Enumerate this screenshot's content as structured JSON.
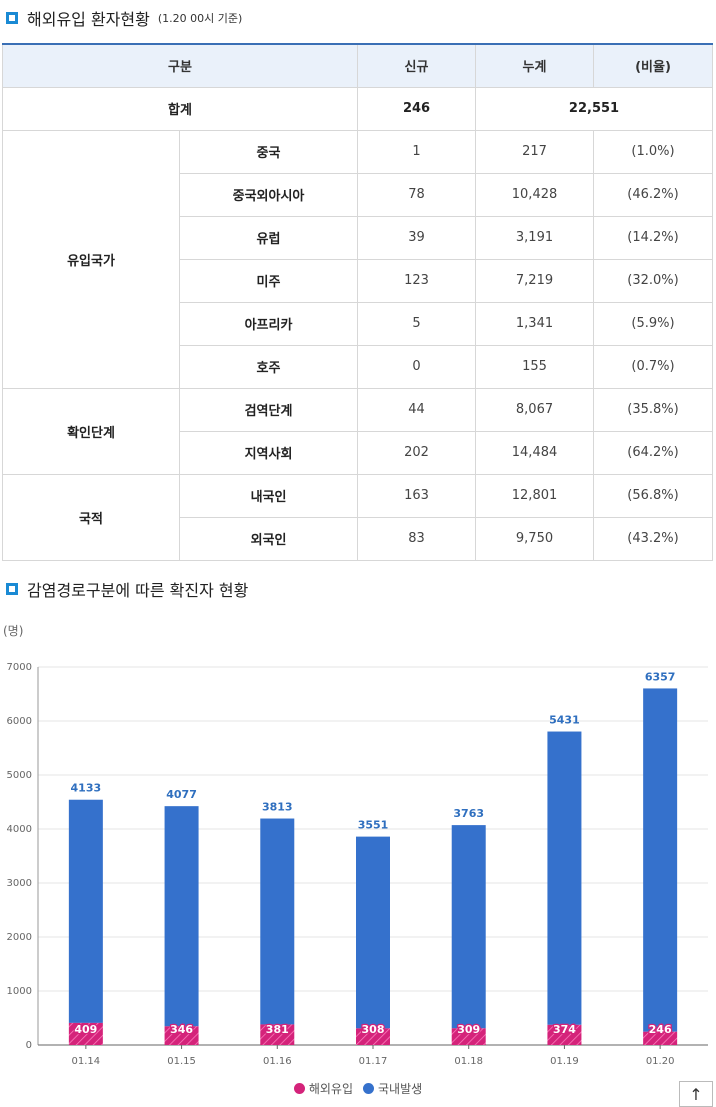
{
  "section1": {
    "title": "해외유입 환자현황",
    "subtitle": "(1.20 00시 기준)"
  },
  "table": {
    "headers": [
      "구분",
      "신규",
      "누계",
      "(비율)"
    ],
    "total": {
      "label": "합계",
      "new": "246",
      "cumulative": "22,551"
    },
    "groups": [
      {
        "label": "유입국가",
        "rows": [
          {
            "name": "중국",
            "new": "1",
            "cumulative": "217",
            "ratio": "(1.0%)"
          },
          {
            "name": "중국외아시아",
            "new": "78",
            "cumulative": "10,428",
            "ratio": "(46.2%)"
          },
          {
            "name": "유럽",
            "new": "39",
            "cumulative": "3,191",
            "ratio": "(14.2%)"
          },
          {
            "name": "미주",
            "new": "123",
            "cumulative": "7,219",
            "ratio": "(32.0%)"
          },
          {
            "name": "아프리카",
            "new": "5",
            "cumulative": "1,341",
            "ratio": "(5.9%)"
          },
          {
            "name": "호주",
            "new": "0",
            "cumulative": "155",
            "ratio": "(0.7%)"
          }
        ]
      },
      {
        "label": "확인단계",
        "rows": [
          {
            "name": "검역단계",
            "new": "44",
            "cumulative": "8,067",
            "ratio": "(35.8%)"
          },
          {
            "name": "지역사회",
            "new": "202",
            "cumulative": "14,484",
            "ratio": "(64.2%)"
          }
        ]
      },
      {
        "label": "국적",
        "rows": [
          {
            "name": "내국인",
            "new": "163",
            "cumulative": "12,801",
            "ratio": "(56.8%)"
          },
          {
            "name": "외국인",
            "new": "83",
            "cumulative": "9,750",
            "ratio": "(43.2%)"
          }
        ]
      }
    ]
  },
  "section2": {
    "title": "감염경로구분에 따른 확진자 현황"
  },
  "chart_data": {
    "type": "bar",
    "stacked": true,
    "unit_label": "(명)",
    "categories": [
      "01.14",
      "01.15",
      "01.16",
      "01.17",
      "01.18",
      "01.19",
      "01.20"
    ],
    "ylim": [
      0,
      7000
    ],
    "yticks": [
      0,
      1000,
      2000,
      3000,
      4000,
      5000,
      6000,
      7000
    ],
    "series": [
      {
        "name": "해외유입",
        "color": "#d4237a",
        "values": [
          409,
          346,
          381,
          308,
          309,
          374,
          246
        ]
      },
      {
        "name": "국내발생",
        "color": "#3571cc",
        "values": [
          4133,
          4077,
          3813,
          3551,
          3763,
          5431,
          6357
        ]
      }
    ],
    "label_colors": {
      "국내발생": "#2f6fbf",
      "해외유입": "#ffffff"
    }
  },
  "top_button": {
    "icon": "arrow-up-icon",
    "glyph": "↑"
  }
}
